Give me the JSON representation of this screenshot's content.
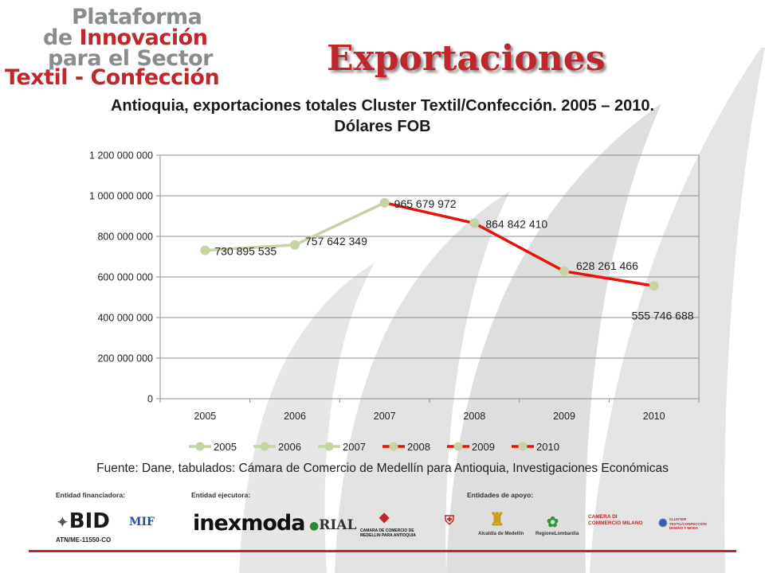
{
  "logo": {
    "line1": "Plataforma",
    "line2_prefix": "de ",
    "line2_accent": "Innovación",
    "line3": "para el Sector",
    "line4": "Textil - Confección"
  },
  "page_title": "Exportaciones",
  "chart_data": {
    "type": "line",
    "title": "Antioquia, exportaciones totales Cluster Textil/Confección. 2005 – 2010.",
    "subtitle": "Dólares FOB",
    "categories": [
      "2005",
      "2006",
      "2007",
      "2008",
      "2009",
      "2010"
    ],
    "values": [
      730895535,
      757642349,
      965679972,
      864842410,
      628261466,
      555746688
    ],
    "data_labels": [
      "730 895 535",
      "757 642 349",
      "965 679 972",
      "864 842 410",
      "628 261 466",
      "555 746 688"
    ],
    "ylim": [
      0,
      1200000000
    ],
    "yticks": [
      0,
      200000000,
      400000000,
      600000000,
      800000000,
      1000000000,
      1200000000
    ],
    "ytick_labels": [
      "0",
      "200 000 000",
      "400 000 000",
      "600 000 000",
      "800 000 000",
      "1 000 000 000",
      "1 200 000 000"
    ],
    "grid": true,
    "legend_position": "bottom",
    "legend_entries": [
      "2005",
      "2006",
      "2007",
      "2008",
      "2009",
      "2010"
    ],
    "colors": {
      "early_line": "#c4d4a4",
      "late_line": "#e8120c",
      "marker": "#c4d4a4"
    }
  },
  "source_text": "Fuente: Dane, tabulados: Cámara de Comercio de Medellín para Antioquia, Investigaciones Económicas",
  "footer": {
    "financing_label": "Entidad financiadora:",
    "executing_label": "Entidad ejecutora:",
    "support_label": "Entidades de apoyo:",
    "bid": "BID",
    "bid_code": "ATN/ME-11550-CO",
    "mif": "MIF",
    "inexmoda": "inexmoda",
    "rial": "RIAL",
    "camara": "CAMARA DE COMERCIO DE MEDELLIN PARA ANTIOQUIA",
    "alcaldia": "Alcaldía de Medellín",
    "lombardia": "RegioneLombardia",
    "camera_milano": "CAMERA DI COMMERCIO MILANO",
    "cluster": "CLUSTER TEXTIL/CONFECCIÓN DISEÑO Y MODA"
  }
}
